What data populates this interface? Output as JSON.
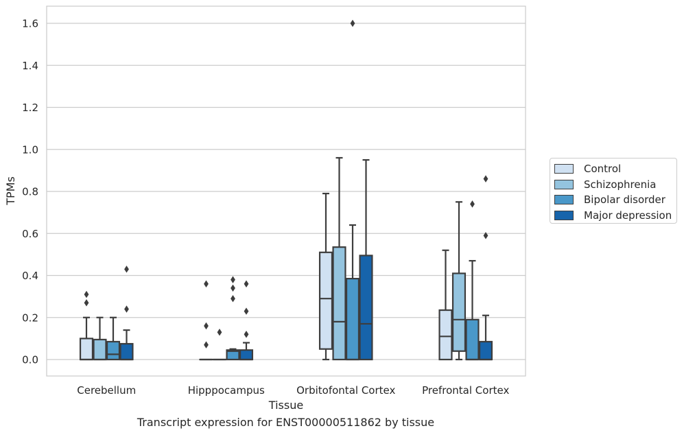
{
  "caption": "Transcript expression for ENST00000511862 by tissue",
  "chart_data": {
    "type": "boxplot",
    "xlabel": "Tissue",
    "ylabel": "TPMs",
    "ylim": [
      -0.08,
      1.68
    ],
    "yticks": [
      "0.0",
      "0.2",
      "0.4",
      "0.6",
      "0.8",
      "1.0",
      "1.2",
      "1.4",
      "1.6"
    ],
    "grid": true,
    "legend_position": "right",
    "categories": [
      "Cerebellum",
      "Hipppocampus",
      "Orbitofontal Cortex",
      "Prefrontal Cortex"
    ],
    "series": [
      {
        "name": "Control",
        "color": "#d0e1f2",
        "boxes": [
          {
            "min": 0,
            "q1": 0,
            "median": 0,
            "q3": 0.1,
            "max": 0.2,
            "outliers": [
              0.27,
              0.31
            ]
          },
          {
            "min": 0,
            "q1": 0,
            "median": 0,
            "q3": 0,
            "max": 0,
            "outliers": [
              0.07,
              0.16,
              0.36
            ]
          },
          {
            "min": 0,
            "q1": 0.05,
            "median": 0.29,
            "q3": 0.51,
            "max": 0.79,
            "outliers": []
          },
          {
            "min": 0,
            "q1": 0,
            "median": 0.11,
            "q3": 0.235,
            "max": 0.52,
            "outliers": []
          }
        ]
      },
      {
        "name": "Schizophrenia",
        "color": "#94c4df",
        "boxes": [
          {
            "min": 0,
            "q1": 0,
            "median": 0,
            "q3": 0.095,
            "max": 0.2,
            "outliers": []
          },
          {
            "min": 0,
            "q1": 0,
            "median": 0,
            "q3": 0,
            "max": 0,
            "outliers": [
              0.13
            ]
          },
          {
            "min": 0,
            "q1": 0,
            "median": 0.18,
            "q3": 0.535,
            "max": 0.96,
            "outliers": []
          },
          {
            "min": 0,
            "q1": 0.04,
            "median": 0.19,
            "q3": 0.41,
            "max": 0.75,
            "outliers": []
          }
        ]
      },
      {
        "name": "Bipolar disorder",
        "color": "#4a98c9",
        "boxes": [
          {
            "min": 0,
            "q1": 0,
            "median": 0.025,
            "q3": 0.085,
            "max": 0.2,
            "outliers": []
          },
          {
            "min": 0,
            "q1": 0,
            "median": 0.04,
            "q3": 0.045,
            "max": 0.05,
            "outliers": [
              0.29,
              0.34,
              0.38
            ]
          },
          {
            "min": 0,
            "q1": 0,
            "median": 0,
            "q3": 0.385,
            "max": 0.64,
            "outliers": [
              1.6
            ]
          },
          {
            "min": 0,
            "q1": 0,
            "median": 0,
            "q3": 0.19,
            "max": 0.47,
            "outliers": [
              0.74
            ]
          }
        ]
      },
      {
        "name": "Major depression",
        "color": "#1764ab",
        "boxes": [
          {
            "min": 0,
            "q1": 0,
            "median": 0,
            "q3": 0.075,
            "max": 0.14,
            "outliers": [
              0.24,
              0.43
            ]
          },
          {
            "min": 0,
            "q1": 0,
            "median": 0,
            "q3": 0.045,
            "max": 0.08,
            "outliers": [
              0.12,
              0.23,
              0.36
            ]
          },
          {
            "min": 0,
            "q1": 0,
            "median": 0.17,
            "q3": 0.495,
            "max": 0.95,
            "outliers": []
          },
          {
            "min": 0,
            "q1": 0,
            "median": 0,
            "q3": 0.085,
            "max": 0.21,
            "outliers": [
              0.59,
              0.86
            ]
          }
        ]
      }
    ]
  }
}
